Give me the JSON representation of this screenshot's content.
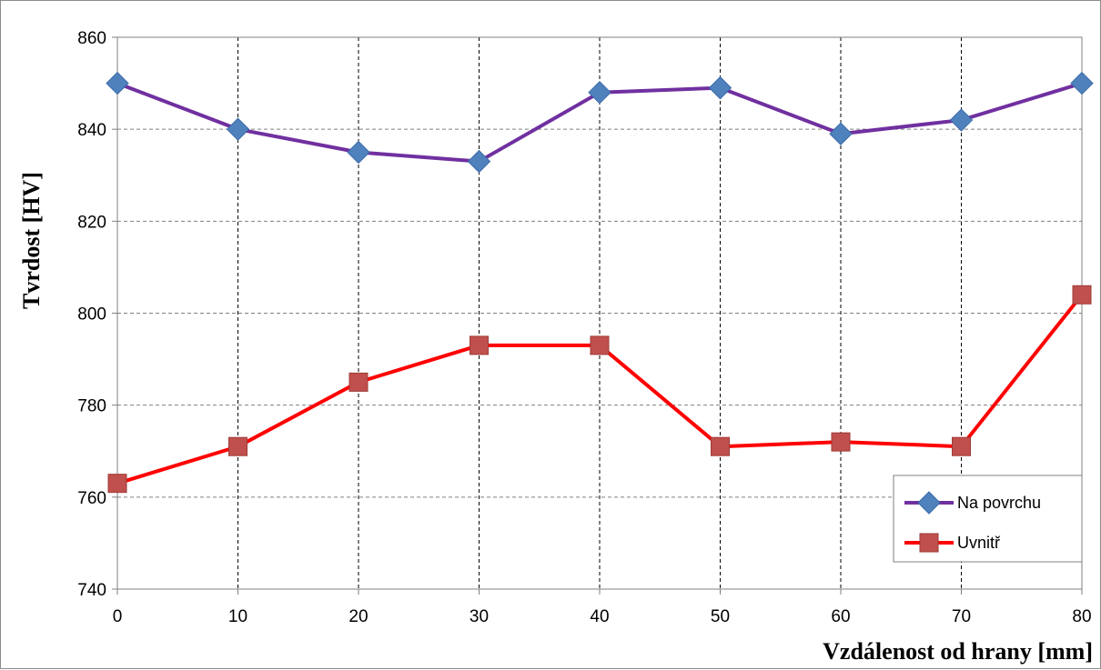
{
  "chart_data": {
    "type": "line",
    "title": "",
    "xlabel": "Vzdálenost od hrany [mm]",
    "ylabel": "Tvrdost [HV]",
    "x": [
      0,
      10,
      20,
      30,
      40,
      50,
      60,
      70,
      80
    ],
    "xlim": [
      0,
      80
    ],
    "ylim": [
      740,
      860
    ],
    "x_ticks": [
      "0",
      "10",
      "20",
      "30",
      "40",
      "50",
      "60",
      "70",
      "80"
    ],
    "y_ticks": [
      "740",
      "760",
      "780",
      "800",
      "820",
      "840",
      "860"
    ],
    "grid": true,
    "legend_position": "bottom-right",
    "series": [
      {
        "name": "Na povrchu",
        "values": [
          850,
          840,
          835,
          833,
          848,
          849,
          839,
          842,
          850
        ],
        "line_color": "#7030a0",
        "marker": "diamond",
        "marker_color": "#4f81bd"
      },
      {
        "name": "Uvnitř",
        "values": [
          763,
          771,
          785,
          793,
          793,
          771,
          772,
          771,
          804
        ],
        "line_color": "#ff0000",
        "marker": "square",
        "marker_color": "#c0504d"
      }
    ]
  }
}
